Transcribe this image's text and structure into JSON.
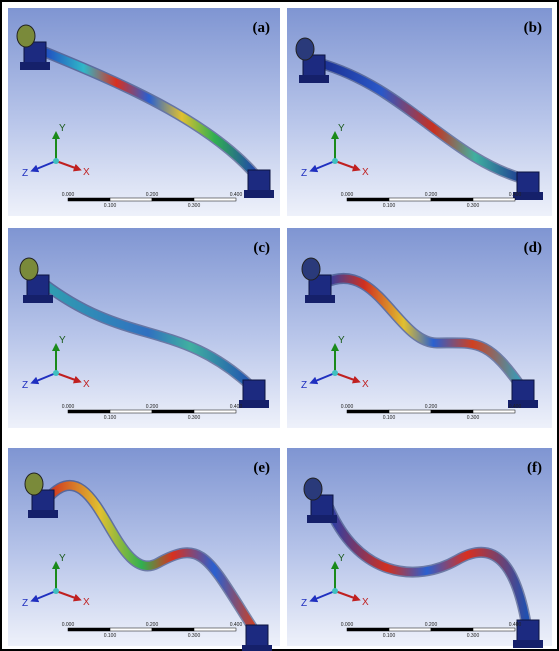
{
  "panels": [
    {
      "label": "(a)",
      "axes": {
        "x": "X",
        "y": "Y",
        "z": "Z"
      },
      "scale_top": [
        "0.000",
        "0.200",
        "0.400"
      ],
      "scale_bottom": [
        "0.100",
        "0.300"
      ]
    },
    {
      "label": "(b)",
      "axes": {
        "x": "X",
        "y": "Y",
        "z": "Z"
      },
      "scale_top": [
        "0.000",
        "0.200",
        "0.400"
      ],
      "scale_bottom": [
        "0.100",
        "0.300"
      ]
    },
    {
      "label": "(c)",
      "axes": {
        "x": "X",
        "y": "Y",
        "z": "Z"
      },
      "scale_top": [
        "0.000",
        "0.200",
        "0.400"
      ],
      "scale_bottom": [
        "0.100",
        "0.300"
      ]
    },
    {
      "label": "(d)",
      "axes": {
        "x": "X",
        "y": "Y",
        "z": "Z"
      },
      "scale_top": [
        "0.000",
        "0.200",
        "0.400"
      ],
      "scale_bottom": [
        "0.100",
        "0.300"
      ]
    },
    {
      "label": "(e)",
      "axes": {
        "x": "X",
        "y": "Y",
        "z": "Z"
      },
      "scale_top": [
        "0.000",
        "0.200",
        "0.400"
      ],
      "scale_bottom": [
        "0.100",
        "0.300"
      ]
    },
    {
      "label": "(f)",
      "axes": {
        "x": "X",
        "y": "Y",
        "z": "Z"
      },
      "scale_top": [
        "0.000",
        "0.200",
        "0.400"
      ],
      "scale_bottom": [
        "0.100",
        "0.300"
      ]
    }
  ]
}
